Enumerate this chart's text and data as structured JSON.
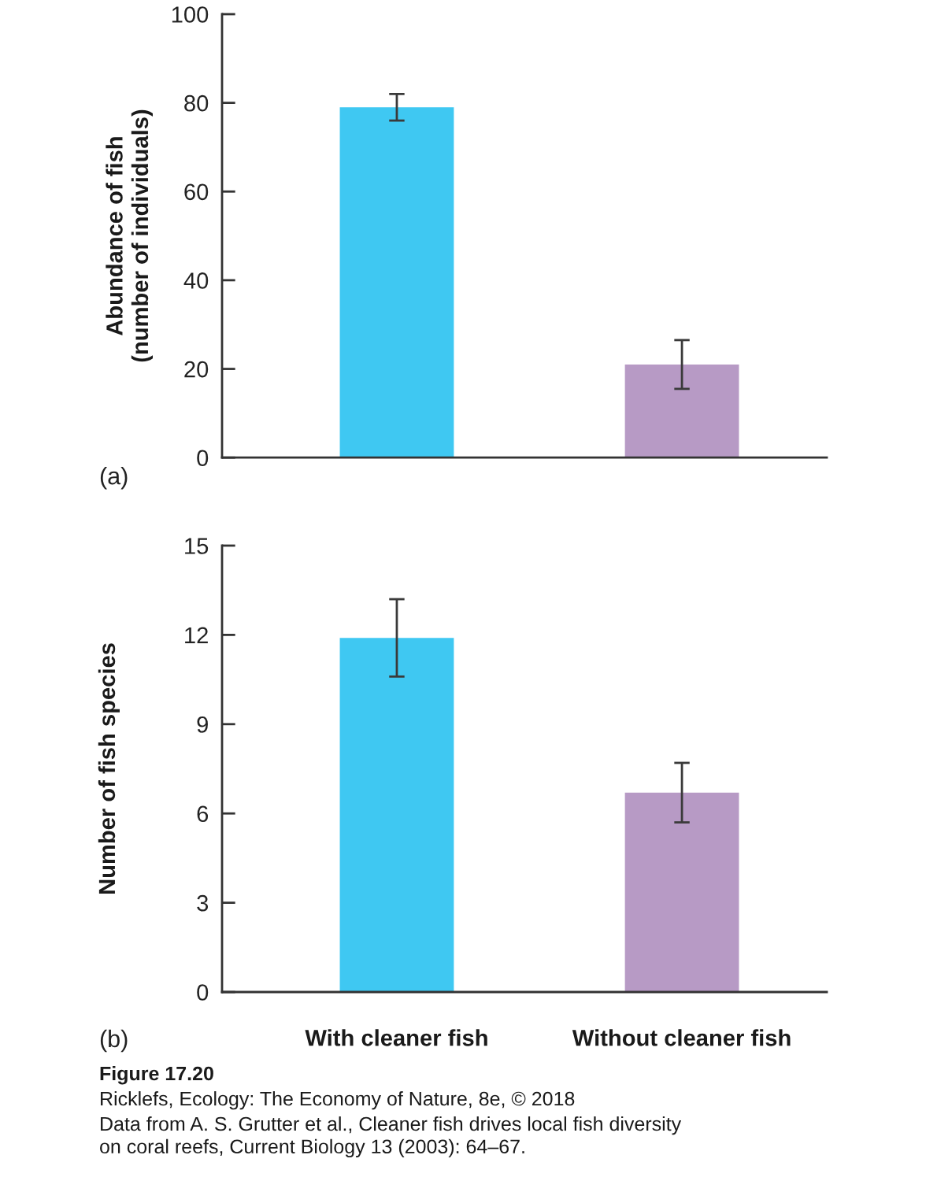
{
  "chart_data": [
    {
      "type": "bar",
      "ylabel": "Abundance of fish\n(number of individuals)",
      "categories": [
        null,
        null
      ],
      "values": [
        79,
        21
      ],
      "errors": [
        3,
        5.5
      ],
      "colors": [
        "#3fc8f2",
        "#b79ac5"
      ],
      "ylim": [
        0,
        100
      ],
      "yticks": [
        0,
        20,
        40,
        60,
        80,
        100
      ],
      "annotations": [
        "(a)"
      ]
    },
    {
      "type": "bar",
      "ylabel": "Number of fish species",
      "categories": [
        "With cleaner fish",
        "Without cleaner fish"
      ],
      "values": [
        11.9,
        6.7
      ],
      "errors": [
        1.3,
        1.0
      ],
      "colors": [
        "#3fc8f2",
        "#b79ac5"
      ],
      "ylim": [
        0,
        15
      ],
      "yticks": [
        0,
        3,
        6,
        9,
        12,
        15
      ],
      "annotations": [
        "(b)",
        "Figure 17.20",
        "Ricklefs, Ecology: The Economy of Nature, 8e, © 2018",
        "Data from A. S. Grutter et al., Cleaner fish drives local fish diversity on coral reefs, Current Biology 13 (2003): 64–67."
      ]
    }
  ]
}
